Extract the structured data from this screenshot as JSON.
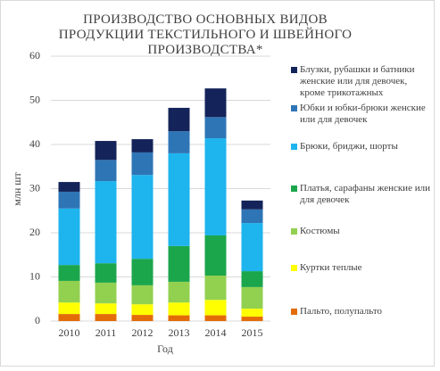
{
  "chart_data": {
    "type": "stacked-bar",
    "title": "ПРОИЗВОДСТВО ОСНОВНЫХ ВИДОВ ПРОДУКЦИИ ТЕКСТИЛЬНОГО И ШВЕЙНОГО ПРОИЗВОДСТВА*",
    "x_label": "Год",
    "y_label": "млн шт",
    "categories": [
      "2010",
      "2011",
      "2012",
      "2013",
      "2014",
      "2015"
    ],
    "series": [
      {
        "name": "Пальто, полупальто",
        "color": "#e36c09",
        "values": [
          1.6,
          1.6,
          1.4,
          1.3,
          1.3,
          1.0
        ]
      },
      {
        "name": "Куртки теплые",
        "color": "#ffff00",
        "values": [
          2.6,
          2.4,
          2.4,
          2.9,
          3.5,
          1.8
        ]
      },
      {
        "name": "Костюмы",
        "color": "#92d050",
        "values": [
          4.9,
          4.7,
          4.3,
          4.7,
          5.5,
          4.9
        ]
      },
      {
        "name": "Платья, сарафаны женские или для девочек",
        "color": "#1ba64c",
        "values": [
          3.6,
          4.4,
          6.0,
          8.1,
          9.1,
          3.6
        ]
      },
      {
        "name": "Брюки, бриджи, шорты",
        "color": "#1eb4ee",
        "values": [
          12.8,
          18.6,
          19.0,
          21.0,
          22.0,
          10.9
        ]
      },
      {
        "name": "Юбки и юбки-брюки женские или для девочек",
        "color": "#2e75b6",
        "values": [
          3.8,
          4.8,
          5.1,
          5.0,
          4.8,
          3.1
        ]
      },
      {
        "name": "Блузки, рубашки и батники женские или для девочек, кроме трикотажных",
        "color": "#14245a",
        "values": [
          2.2,
          4.3,
          3.0,
          5.3,
          6.5,
          2.0
        ]
      }
    ],
    "ylim": [
      0,
      60
    ],
    "yticks": [
      0,
      10,
      20,
      30,
      40,
      50,
      60
    ],
    "grid": true
  }
}
